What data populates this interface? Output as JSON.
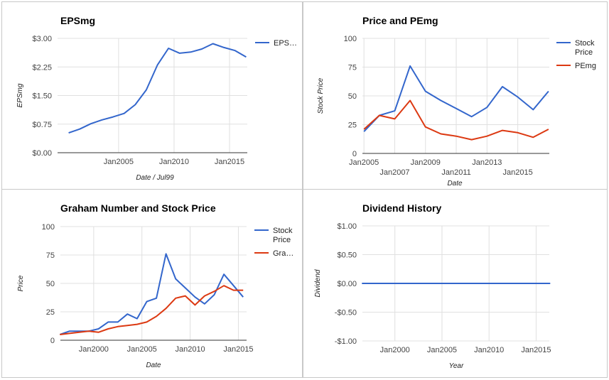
{
  "chart_data": [
    {
      "type": "line",
      "title": "EPSmg",
      "xlabel": "Date / Jul99",
      "ylabel": "EPSmg",
      "x_tick_labels": [
        "Jan2005",
        "Jan2010",
        "Jan2015"
      ],
      "y_tick_labels": [
        "$0.00",
        "$0.75",
        "$1.50",
        "$2.25",
        "$3.00"
      ],
      "ylim": [
        0,
        3
      ],
      "grid": true,
      "legend": "right",
      "series": [
        {
          "name": "EPS…",
          "color": "#3366cc",
          "x": [
            "2000-07",
            "2001-07",
            "2002-07",
            "2003-07",
            "2004-07",
            "2005-07",
            "2006-07",
            "2007-07",
            "2008-07",
            "2009-07",
            "2010-07",
            "2011-07",
            "2012-07",
            "2013-07",
            "2014-07",
            "2015-07",
            "2016-07"
          ],
          "values": [
            0.52,
            0.62,
            0.76,
            0.86,
            0.94,
            1.03,
            1.26,
            1.65,
            2.3,
            2.74,
            2.61,
            2.64,
            2.72,
            2.86,
            2.76,
            2.68,
            2.51
          ]
        }
      ]
    },
    {
      "type": "line",
      "title": "Price and PEmg",
      "xlabel": "Date",
      "ylabel": "Stock Price",
      "x_tick_labels": [
        "Jan2005",
        "Jan2007",
        "Jan2009",
        "Jan2011",
        "Jan2013",
        "Jan2015"
      ],
      "y_tick_labels": [
        "0",
        "25",
        "50",
        "75",
        "100"
      ],
      "ylim": [
        0,
        100
      ],
      "grid": true,
      "legend": "right",
      "series": [
        {
          "name": "Stock Price",
          "color": "#3366cc",
          "x": [
            "2005-01",
            "2006-01",
            "2007-01",
            "2008-01",
            "2009-01",
            "2010-01",
            "2011-01",
            "2012-01",
            "2013-01",
            "2014-01",
            "2015-01",
            "2016-01",
            "2017-01"
          ],
          "values": [
            19,
            33,
            37,
            76,
            54,
            46,
            39,
            32,
            40,
            58,
            49,
            38,
            54
          ]
        },
        {
          "name": "PEmg",
          "color": "#dc3912",
          "x": [
            "2005-01",
            "2006-01",
            "2007-01",
            "2008-01",
            "2009-01",
            "2010-01",
            "2011-01",
            "2012-01",
            "2013-01",
            "2014-01",
            "2015-01",
            "2016-01",
            "2017-01"
          ],
          "values": [
            21,
            33,
            30,
            46,
            23,
            17,
            15,
            12,
            15,
            20,
            18,
            14,
            21
          ]
        }
      ]
    },
    {
      "type": "line",
      "title": "Graham Number and Stock Price",
      "xlabel": "Date",
      "ylabel": "Price",
      "x_tick_labels": [
        "Jan2000",
        "Jan2005",
        "Jan2010",
        "Jan2015"
      ],
      "y_tick_labels": [
        "0",
        "25",
        "50",
        "75",
        "100"
      ],
      "ylim": [
        0,
        100
      ],
      "grid": true,
      "legend": "right",
      "series": [
        {
          "name": "Stock Price",
          "color": "#3366cc",
          "x": [
            "1996-07",
            "1997-07",
            "1998-07",
            "1999-07",
            "2000-07",
            "2001-07",
            "2002-07",
            "2003-07",
            "2004-07",
            "2005-07",
            "2006-07",
            "2007-07",
            "2008-07",
            "2009-07",
            "2010-07",
            "2011-07",
            "2012-07",
            "2013-07",
            "2014-07",
            "2015-07"
          ],
          "values": [
            5,
            8,
            8,
            8,
            10,
            16,
            16,
            23,
            19,
            34,
            37,
            76,
            54,
            46,
            38,
            32,
            40,
            58,
            48,
            38
          ]
        },
        {
          "name": "Gra…",
          "color": "#dc3912",
          "x": [
            "1996-07",
            "1997-07",
            "1998-07",
            "1999-07",
            "2000-07",
            "2001-07",
            "2002-07",
            "2003-07",
            "2004-07",
            "2005-07",
            "2006-07",
            "2007-07",
            "2008-07",
            "2009-07",
            "2010-07",
            "2011-07",
            "2012-07",
            "2013-07",
            "2014-07",
            "2015-07"
          ],
          "values": [
            5,
            6,
            7,
            8,
            7,
            10,
            12,
            13,
            14,
            16,
            21,
            28,
            37,
            39,
            31,
            39,
            43,
            48,
            44,
            44
          ]
        }
      ]
    },
    {
      "type": "line",
      "title": "Dividend History",
      "xlabel": "Year",
      "ylabel": "Dividend",
      "x_tick_labels": [
        "Jan2000",
        "Jan2005",
        "Jan2010",
        "Jan2015"
      ],
      "y_tick_labels": [
        "-$1.00",
        "-$0.50",
        "$0.00",
        "$0.50",
        "$1.00"
      ],
      "ylim": [
        -1,
        1
      ],
      "grid": true,
      "legend": "none",
      "series": [
        {
          "color": "#3366cc",
          "x": [
            "1996-07",
            "2016-07"
          ],
          "values": [
            0,
            0
          ]
        }
      ]
    }
  ]
}
